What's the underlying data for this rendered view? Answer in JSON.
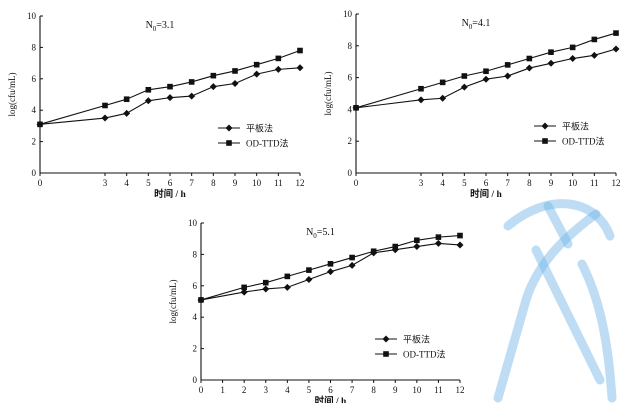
{
  "chart_data": [
    {
      "type": "line",
      "title": "N0=3.1",
      "xlabel": "时间 / h",
      "ylabel": "log(cfu/mL)",
      "xlim": [
        0,
        12
      ],
      "ylim": [
        0,
        10
      ],
      "xticks": [
        "0",
        "3",
        "4",
        "5",
        "6",
        "7",
        "8",
        "9",
        "10",
        "11",
        "12"
      ],
      "yticks": [
        "0",
        "2",
        "4",
        "6",
        "8",
        "10"
      ],
      "legend_position": "lower-right",
      "grid": false,
      "x": [
        0,
        3,
        4,
        5,
        6,
        7,
        8,
        9,
        10,
        11,
        12
      ],
      "series": [
        {
          "name": "平板法",
          "marker": "diamond",
          "values": [
            3.1,
            3.5,
            3.8,
            4.6,
            4.8,
            4.9,
            5.5,
            5.7,
            6.3,
            6.6,
            6.7
          ]
        },
        {
          "name": "OD-TTD法",
          "marker": "square",
          "values": [
            3.1,
            4.3,
            4.7,
            5.3,
            5.5,
            5.8,
            6.2,
            6.5,
            6.9,
            7.3,
            7.8
          ]
        }
      ]
    },
    {
      "type": "line",
      "title": "N0=4.1",
      "xlabel": "时间 / h",
      "ylabel": "log(cfu/mL)",
      "xlim": [
        0,
        12
      ],
      "ylim": [
        0,
        10
      ],
      "xticks": [
        "0",
        "3",
        "4",
        "5",
        "6",
        "7",
        "8",
        "9",
        "10",
        "11",
        "12"
      ],
      "yticks": [
        "0",
        "2",
        "4",
        "6",
        "8",
        "10"
      ],
      "legend_position": "lower-right",
      "grid": false,
      "x": [
        0,
        3,
        4,
        5,
        6,
        7,
        8,
        9,
        10,
        11,
        12
      ],
      "series": [
        {
          "name": "平板法",
          "marker": "diamond",
          "values": [
            4.1,
            4.6,
            4.7,
            5.4,
            5.9,
            6.1,
            6.6,
            6.9,
            7.2,
            7.4,
            7.8
          ]
        },
        {
          "name": "OD-TTD法",
          "marker": "square",
          "values": [
            4.1,
            5.3,
            5.7,
            6.1,
            6.4,
            6.8,
            7.2,
            7.6,
            7.9,
            8.4,
            8.8
          ]
        }
      ]
    },
    {
      "type": "line",
      "title": "N0=5.1",
      "xlabel": "时间 / h",
      "ylabel": "log(cfu/mL)",
      "xlim": [
        0,
        12
      ],
      "ylim": [
        0,
        10
      ],
      "xticks": [
        "0",
        "1",
        "2",
        "3",
        "4",
        "5",
        "6",
        "7",
        "8",
        "9",
        "10",
        "11",
        "12"
      ],
      "yticks": [
        "0",
        "2",
        "4",
        "6",
        "8",
        "10"
      ],
      "legend_position": "lower-right",
      "grid": false,
      "x": [
        0,
        2,
        3,
        4,
        5,
        6,
        7,
        8,
        9,
        10,
        11,
        12
      ],
      "series": [
        {
          "name": "平板法",
          "marker": "diamond",
          "values": [
            5.1,
            5.6,
            5.8,
            5.9,
            6.4,
            6.9,
            7.3,
            8.1,
            8.3,
            8.5,
            8.7,
            8.6
          ]
        },
        {
          "name": "OD-TTD法",
          "marker": "square",
          "values": [
            5.1,
            5.9,
            6.2,
            6.6,
            7.0,
            7.4,
            7.8,
            8.2,
            8.5,
            8.9,
            9.1,
            9.2
          ]
        }
      ]
    }
  ],
  "colors": {
    "line": "#111111",
    "watermark": "#6fb3e6"
  }
}
